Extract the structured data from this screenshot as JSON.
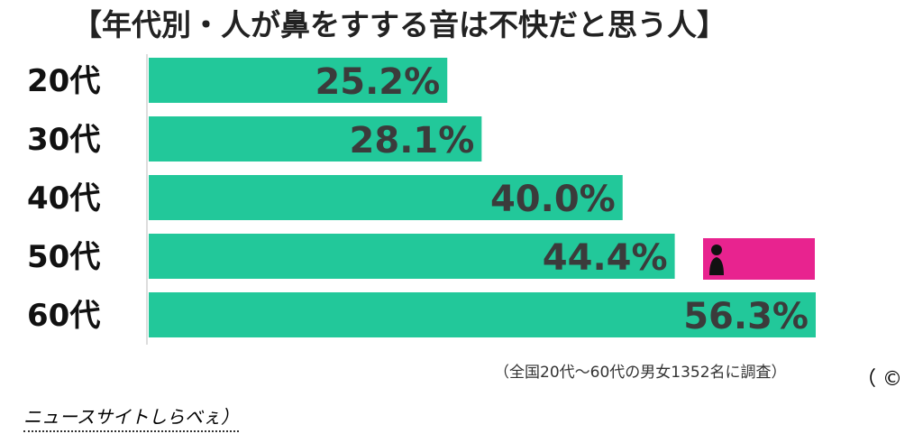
{
  "page": {
    "title": "【年代別・人が鼻をすする音は不快だと思う人】",
    "footnote": "（全国20代〜60代の男女1352名に調査）",
    "copyright": "（ ©",
    "source": "ニュースサイトしらべぇ）",
    "logo": "しらべぇ"
  },
  "colors": {
    "bar": "#22c89a",
    "value_text": "#3b3b3b",
    "logo_bg": "#e8238f"
  },
  "chart_data": {
    "type": "bar",
    "orientation": "horizontal",
    "categories": [
      "20代",
      "30代",
      "40代",
      "50代",
      "60代"
    ],
    "values": [
      25.2,
      28.1,
      40.0,
      44.4,
      56.3
    ],
    "value_labels": [
      "25.2%",
      "28.1%",
      "40.0%",
      "44.4%",
      "56.3%"
    ],
    "title": "【年代別・人が鼻をすする音は不快だと思う人】",
    "xlabel": "",
    "ylabel": "",
    "xlim": [
      0,
      56.3
    ],
    "grid": false,
    "legend": "none"
  }
}
